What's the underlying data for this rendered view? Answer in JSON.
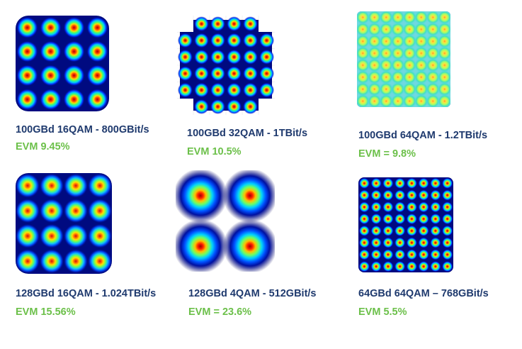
{
  "panels": [
    {
      "title": "100GBd 16QAM - 800GBit/s",
      "evm": "EVM 9.45%",
      "order": 4,
      "shape": "square",
      "style": "sharp"
    },
    {
      "title": "100GBd 32QAM  - 1TBit/s",
      "evm": "EVM 10.5%",
      "order": 6,
      "shape": "cross",
      "style": "sharp"
    },
    {
      "title": "100GBd 64QAM  - 1.2TBit/s",
      "evm": "EVM = 9.8%",
      "order": 8,
      "shape": "square",
      "style": "blurred"
    },
    {
      "title": "128GBd 16QAM - 1.024TBit/s",
      "evm": "EVM 15.56%",
      "order": 4,
      "shape": "square",
      "style": "soft"
    },
    {
      "title": "128GBd 4QAM - 512GBit/s",
      "evm": "EVM = 23.6%",
      "order": 2,
      "shape": "square",
      "style": "wide"
    },
    {
      "title": "64GBd 64QAM – 768GBit/s",
      "evm": "EVM 5.5%",
      "order": 8,
      "shape": "square",
      "style": "sharp"
    }
  ],
  "colors": {
    "title": "#1f3a6e",
    "evm": "#6cc04a",
    "background": "#000a80"
  }
}
